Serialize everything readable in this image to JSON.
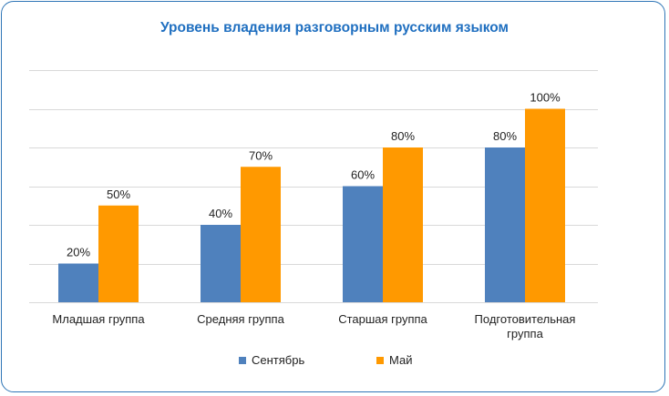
{
  "chart_data": {
    "type": "bar",
    "title": "Уровень владения разговорным русским языком",
    "xlabel": "",
    "ylabel": "",
    "ylim": [
      0,
      120
    ],
    "grid": true,
    "legend_position": "bottom",
    "categories": [
      "Младшая группа",
      "Средняя группа",
      "Старшая группа",
      "Подготовительная группа"
    ],
    "series": [
      {
        "name": "Сентябрь",
        "values": [
          20,
          40,
          60,
          80
        ],
        "labels": [
          "20%",
          "40%",
          "60%",
          "80%"
        ],
        "color": "#4f81bd"
      },
      {
        "name": "Май",
        "values": [
          50,
          70,
          80,
          100
        ],
        "labels": [
          "50%",
          "70%",
          "80%",
          "100%"
        ],
        "color": "#ff9900"
      }
    ]
  }
}
